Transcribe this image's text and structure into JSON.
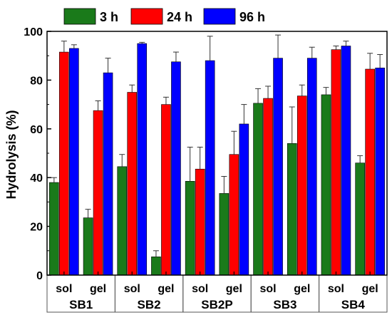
{
  "chart_data": {
    "type": "bar",
    "ylabel": "Hydrolysis (%)",
    "xlabel": "",
    "title": "",
    "ylim": [
      0,
      100
    ],
    "yticks": [
      0,
      20,
      40,
      60,
      80,
      100
    ],
    "grid": false,
    "legend_position": "top",
    "samples": [
      "SB1",
      "SB2",
      "SB2P",
      "SB3",
      "SB4"
    ],
    "forms": [
      "sol",
      "gel"
    ],
    "categories": [
      "SB1 sol",
      "SB1 gel",
      "SB2 sol",
      "SB2 gel",
      "SB2P sol",
      "SB2P gel",
      "SB3 sol",
      "SB3 gel",
      "SB4 sol",
      "SB4 gel"
    ],
    "series": [
      {
        "name": "3 h",
        "color": "#1a7a1a",
        "values": [
          38,
          23.5,
          44.5,
          7.5,
          38.5,
          33.5,
          70.5,
          54,
          74,
          46
        ],
        "errors": [
          2,
          3.5,
          5,
          2.5,
          14,
          7,
          6,
          15,
          3,
          3
        ]
      },
      {
        "name": "24 h",
        "color": "#ff0000",
        "values": [
          91.5,
          67.5,
          75,
          70,
          43.5,
          49.5,
          72.5,
          73.5,
          92.5,
          84.5
        ],
        "errors": [
          4.5,
          4,
          3,
          3,
          9,
          9.5,
          5,
          4.5,
          1.5,
          6.5
        ]
      },
      {
        "name": "96 h",
        "color": "#0000ff",
        "values": [
          93,
          83,
          95,
          87.5,
          88,
          62,
          89,
          89,
          94,
          85
        ],
        "errors": [
          1.5,
          6,
          0.5,
          4,
          10,
          8,
          9.5,
          4.5,
          2,
          5.5
        ]
      }
    ]
  }
}
